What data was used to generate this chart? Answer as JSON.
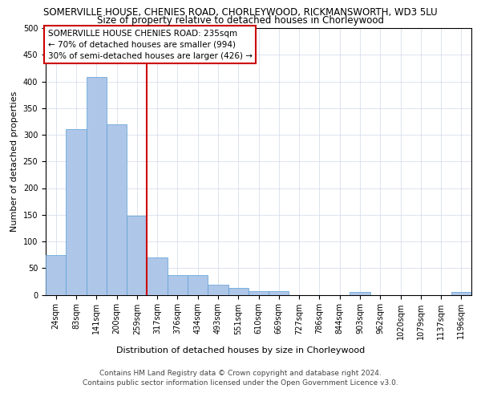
{
  "title_line1": "SOMERVILLE HOUSE, CHENIES ROAD, CHORLEYWOOD, RICKMANSWORTH, WD3 5LU",
  "title_line2": "Size of property relative to detached houses in Chorleywood",
  "xlabel": "Distribution of detached houses by size in Chorleywood",
  "ylabel": "Number of detached properties",
  "categories": [
    "24sqm",
    "83sqm",
    "141sqm",
    "200sqm",
    "259sqm",
    "317sqm",
    "376sqm",
    "434sqm",
    "493sqm",
    "551sqm",
    "610sqm",
    "669sqm",
    "727sqm",
    "786sqm",
    "844sqm",
    "903sqm",
    "962sqm",
    "1020sqm",
    "1079sqm",
    "1137sqm",
    "1196sqm"
  ],
  "values": [
    75,
    311,
    408,
    320,
    148,
    70,
    37,
    37,
    19,
    13,
    7,
    7,
    0,
    0,
    0,
    5,
    0,
    0,
    0,
    0,
    5
  ],
  "bar_color": "#aec6e8",
  "bar_edge_color": "#5a9fd4",
  "reference_line_x": 4.5,
  "reference_line_color": "#cc0000",
  "annotation_text": "SOMERVILLE HOUSE CHENIES ROAD: 235sqm\n← 70% of detached houses are smaller (994)\n30% of semi-detached houses are larger (426) →",
  "annotation_box_color": "#ffffff",
  "annotation_box_edge_color": "#cc0000",
  "ylim": [
    0,
    500
  ],
  "yticks": [
    0,
    50,
    100,
    150,
    200,
    250,
    300,
    350,
    400,
    450,
    500
  ],
  "footer_line1": "Contains HM Land Registry data © Crown copyright and database right 2024.",
  "footer_line2": "Contains public sector information licensed under the Open Government Licence v3.0.",
  "title_fontsize": 8.5,
  "subtitle_fontsize": 8.5,
  "axis_label_fontsize": 8,
  "tick_fontsize": 7,
  "annotation_fontsize": 7.5,
  "footer_fontsize": 6.5,
  "background_color": "#ffffff",
  "grid_color": "#d0d8e8"
}
